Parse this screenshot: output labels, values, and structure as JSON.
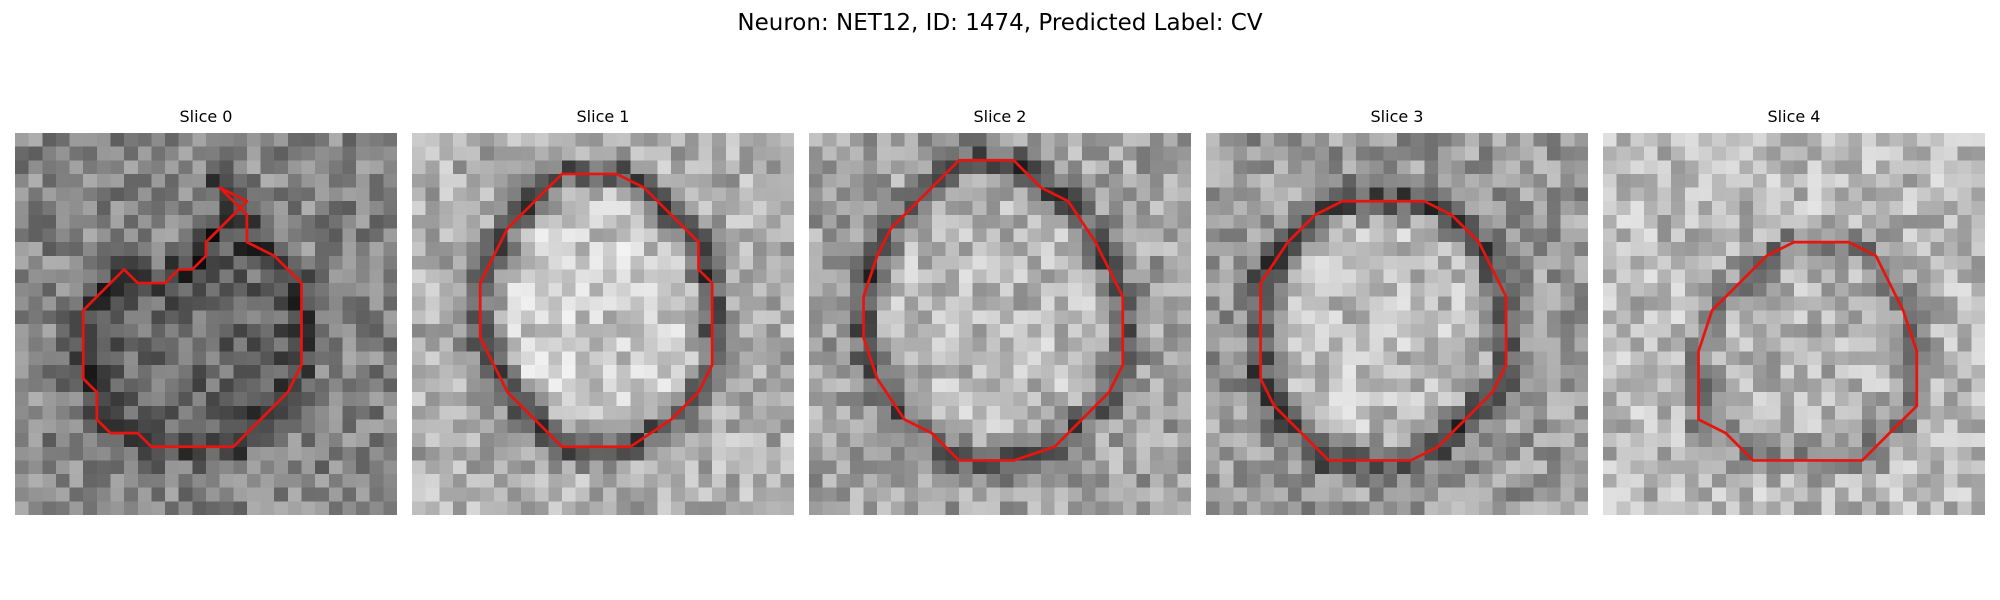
{
  "figure": {
    "title": "Neuron: NET12, ID: 1474, Predicted Label: CV"
  },
  "panels": [
    {
      "title": "Slice 0",
      "contour": [
        [
          15,
          4
        ],
        [
          17,
          6
        ],
        [
          17,
          8
        ],
        [
          19,
          9
        ],
        [
          21,
          11
        ],
        [
          21,
          17
        ],
        [
          20,
          19
        ],
        [
          18,
          21
        ],
        [
          17,
          22
        ],
        [
          16,
          23
        ],
        [
          10,
          23
        ],
        [
          9,
          22
        ],
        [
          7,
          22
        ],
        [
          6,
          21
        ],
        [
          6,
          19
        ],
        [
          5,
          18
        ],
        [
          5,
          13
        ],
        [
          6,
          12
        ],
        [
          7,
          11
        ],
        [
          8,
          10
        ],
        [
          9,
          11
        ],
        [
          11,
          11
        ],
        [
          12,
          10
        ],
        [
          13,
          10
        ],
        [
          14,
          9
        ],
        [
          14,
          8
        ],
        [
          15,
          7
        ],
        [
          16,
          6
        ],
        [
          17,
          5
        ]
      ],
      "ring": 0.18,
      "fill": 0.4,
      "background": 0.52
    },
    {
      "title": "Slice 1",
      "contour": [
        [
          11,
          3
        ],
        [
          15,
          3
        ],
        [
          17,
          4
        ],
        [
          18,
          5
        ],
        [
          20,
          7
        ],
        [
          21,
          8
        ],
        [
          21,
          10
        ],
        [
          22,
          11
        ],
        [
          22,
          17
        ],
        [
          21,
          19
        ],
        [
          19,
          21
        ],
        [
          16,
          23
        ],
        [
          11,
          23
        ],
        [
          9,
          21
        ],
        [
          7,
          19
        ],
        [
          6,
          17
        ],
        [
          5,
          15
        ],
        [
          5,
          11
        ],
        [
          6,
          9
        ],
        [
          7,
          7
        ],
        [
          9,
          5
        ],
        [
          10,
          4
        ]
      ],
      "ring": 0.25,
      "fill": 0.78,
      "background": 0.68
    },
    {
      "title": "Slice 2",
      "contour": [
        [
          11,
          2
        ],
        [
          15,
          2
        ],
        [
          17,
          4
        ],
        [
          19,
          5
        ],
        [
          21,
          8
        ],
        [
          22,
          10
        ],
        [
          23,
          12
        ],
        [
          23,
          17
        ],
        [
          22,
          19
        ],
        [
          20,
          21
        ],
        [
          18,
          23
        ],
        [
          15,
          24
        ],
        [
          11,
          24
        ],
        [
          9,
          22
        ],
        [
          7,
          21
        ],
        [
          5,
          18
        ],
        [
          4,
          15
        ],
        [
          4,
          12
        ],
        [
          5,
          9
        ],
        [
          6,
          7
        ],
        [
          8,
          5
        ],
        [
          9,
          4
        ]
      ],
      "ring": 0.28,
      "fill": 0.72,
      "background": 0.63
    },
    {
      "title": "Slice 3",
      "contour": [
        [
          10,
          5
        ],
        [
          16,
          5
        ],
        [
          18,
          6
        ],
        [
          20,
          8
        ],
        [
          21,
          10
        ],
        [
          22,
          12
        ],
        [
          22,
          17
        ],
        [
          21,
          19
        ],
        [
          19,
          21
        ],
        [
          17,
          23
        ],
        [
          15,
          24
        ],
        [
          9,
          24
        ],
        [
          7,
          22
        ],
        [
          5,
          20
        ],
        [
          4,
          18
        ],
        [
          4,
          11
        ],
        [
          6,
          8
        ],
        [
          8,
          6
        ]
      ],
      "ring": 0.22,
      "fill": 0.74,
      "background": 0.6
    },
    {
      "title": "Slice 4",
      "contour": [
        [
          14,
          8
        ],
        [
          18,
          8
        ],
        [
          20,
          9
        ],
        [
          21,
          11
        ],
        [
          22,
          13
        ],
        [
          23,
          16
        ],
        [
          23,
          20
        ],
        [
          21,
          22
        ],
        [
          19,
          24
        ],
        [
          14,
          24
        ],
        [
          11,
          24
        ],
        [
          9,
          22
        ],
        [
          7,
          21
        ],
        [
          7,
          16
        ],
        [
          8,
          13
        ],
        [
          10,
          11
        ],
        [
          12,
          9
        ]
      ],
      "ring": 0.45,
      "fill": 0.7,
      "background": 0.72
    }
  ]
}
